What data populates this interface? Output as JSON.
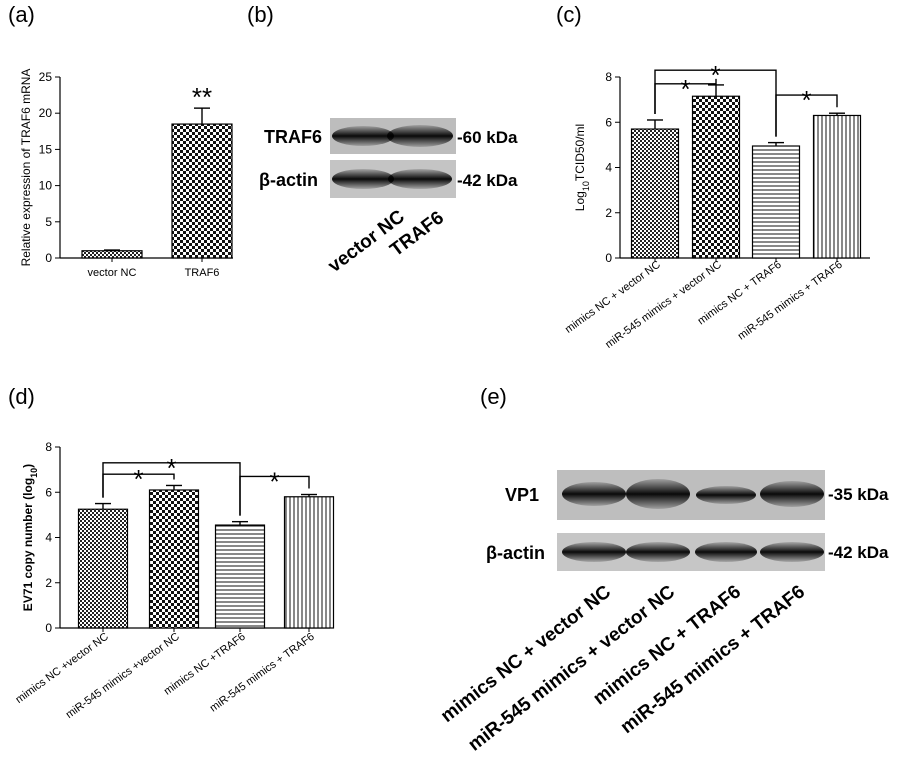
{
  "panels": {
    "a": "(a)",
    "b": "(b)",
    "c": "(c)",
    "d": "(d)",
    "e": "(e)"
  },
  "chart_data": [
    {
      "id": "a",
      "type": "bar",
      "categories": [
        "vector NC",
        "TRAF6"
      ],
      "values": [
        1.0,
        18.5
      ],
      "errors": [
        0.1,
        2.2
      ],
      "patterns": [
        "checker-small",
        "checker"
      ],
      "ylabel": "Relative expression of TRAF6 mRNA",
      "ylim": [
        0,
        25
      ],
      "yticks": [
        0,
        5,
        10,
        15,
        20,
        25
      ],
      "annotations": [
        {
          "bar": 1,
          "text": "**"
        }
      ],
      "brackets": []
    },
    {
      "id": "c",
      "type": "bar",
      "categories": [
        "mimics NC + vector NC",
        "miR-545 mimics + vector NC",
        "mimics NC + TRAF6",
        "miR-545 mimics + TRAF6"
      ],
      "values": [
        5.7,
        7.15,
        4.95,
        6.3
      ],
      "errors": [
        0.4,
        0.5,
        0.15,
        0.1
      ],
      "patterns": [
        "checker-small",
        "checker",
        "hlines",
        "vlines"
      ],
      "ylabel_main": "Log",
      "ylabel_sub": "10",
      "ylabel_rest": "TCID50/ml",
      "ylim": [
        0,
        8
      ],
      "yticks": [
        0,
        2,
        4,
        6,
        8
      ],
      "brackets": [
        {
          "from": 0,
          "to": 1,
          "level": 7.7,
          "text": "*"
        },
        {
          "from": 0,
          "to": 2,
          "level": 8.3,
          "text": "*"
        },
        {
          "from": 2,
          "to": 3,
          "level": 7.2,
          "text": "*"
        }
      ]
    },
    {
      "id": "d",
      "type": "bar",
      "categories": [
        "mimics NC +vector NC",
        "miR-545 mimics +vector NC",
        "mimics NC +TRAF6",
        "miR-545 mimics + TRAF6"
      ],
      "values": [
        5.25,
        6.1,
        4.55,
        5.8
      ],
      "errors": [
        0.25,
        0.2,
        0.15,
        0.1
      ],
      "patterns": [
        "checker-small",
        "checker",
        "hlines",
        "vlines"
      ],
      "ylabel_main": "EV71 copy number (log",
      "ylabel_sub": "10",
      "ylabel_rest": ")",
      "ylim": [
        0,
        8
      ],
      "yticks": [
        0,
        2,
        4,
        6,
        8
      ],
      "brackets": [
        {
          "from": 0,
          "to": 1,
          "level": 6.8,
          "text": "*"
        },
        {
          "from": 0,
          "to": 2,
          "level": 7.3,
          "text": "*"
        },
        {
          "from": 2,
          "to": 3,
          "level": 6.7,
          "text": "*"
        }
      ]
    }
  ],
  "blot_b": {
    "rows": [
      {
        "label": "TRAF6",
        "kda": "-60 kDa"
      },
      {
        "label": "β-actin",
        "kda": "-42 kDa"
      }
    ],
    "lanes": [
      "vector NC",
      "TRAF6"
    ]
  },
  "blot_e": {
    "rows": [
      {
        "label": "VP1",
        "kda": "-35 kDa"
      },
      {
        "label": "β-actin",
        "kda": "-42 kDa"
      }
    ],
    "lanes": [
      "mimics NC + vector NC",
      "miR-545 mimics + vector NC",
      "mimics NC + TRAF6",
      "miR-545 mimics + TRAF6"
    ]
  }
}
